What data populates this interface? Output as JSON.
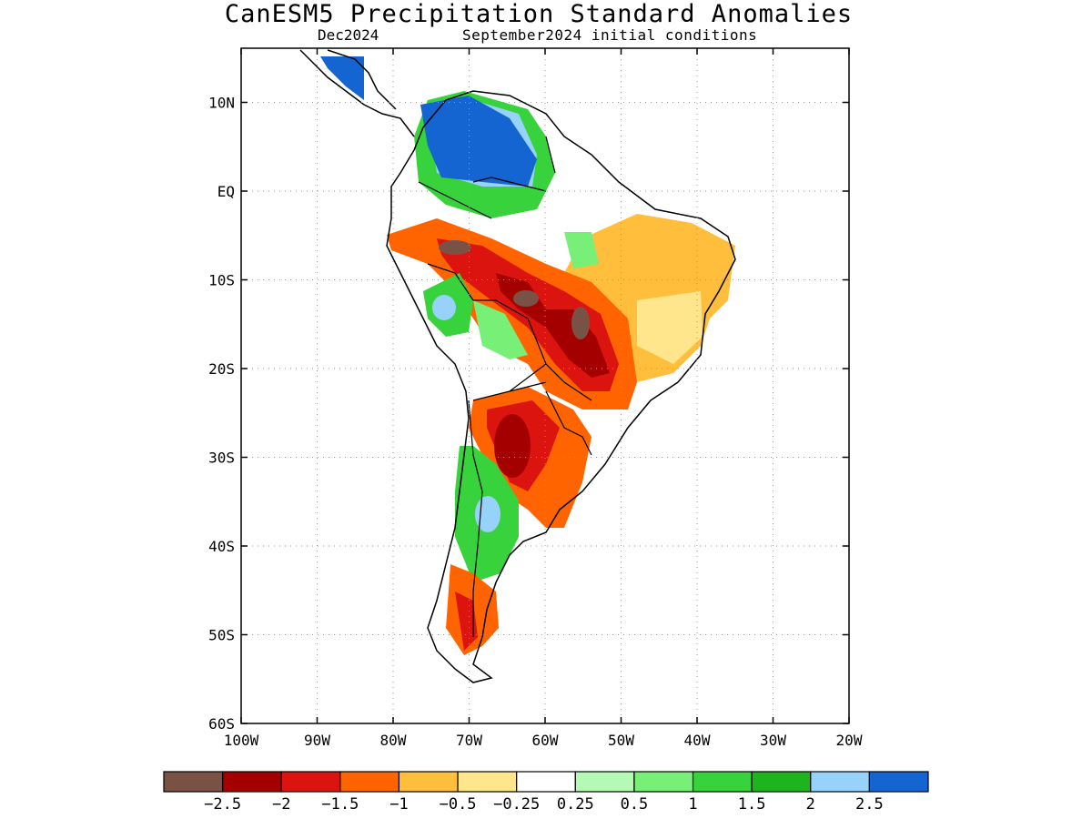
{
  "title": "CanESM5 Precipitation Standard Anomalies",
  "subtitle_left": "Dec2024",
  "subtitle_right": "September2024 initial conditions",
  "map": {
    "region": "South America",
    "lon_range": [
      -100,
      -20
    ],
    "lat_range": [
      -60,
      15
    ],
    "lat_labels": [
      {
        "lat": 10,
        "text": "10N"
      },
      {
        "lat": 0,
        "text": "EQ"
      },
      {
        "lat": -10,
        "text": "10S"
      },
      {
        "lat": -20,
        "text": "20S"
      },
      {
        "lat": -30,
        "text": "30S"
      },
      {
        "lat": -40,
        "text": "40S"
      },
      {
        "lat": -50,
        "text": "50S"
      },
      {
        "lat": -60,
        "text": "60S"
      }
    ],
    "lon_labels": [
      {
        "lon": -100,
        "text": "100W"
      },
      {
        "lon": -90,
        "text": "90W"
      },
      {
        "lon": -80,
        "text": "80W"
      },
      {
        "lon": -70,
        "text": "70W"
      },
      {
        "lon": -60,
        "text": "60W"
      },
      {
        "lon": -50,
        "text": "50W"
      },
      {
        "lon": -40,
        "text": "40W"
      },
      {
        "lon": -30,
        "text": "30W"
      },
      {
        "lon": -20,
        "text": "20W"
      }
    ],
    "grid": "dotted"
  },
  "colorbar": {
    "colors": [
      "#7a5245",
      "#a50000",
      "#dc1410",
      "#ff6400",
      "#ffbe3c",
      "#ffe68c",
      "#ffffff",
      "#b4fab4",
      "#78f078",
      "#37d23c",
      "#1eb41e",
      "#96d2fa",
      "#1464d2"
    ],
    "labels": [
      "−2.5",
      "−2",
      "−1.5",
      "−1",
      "−0.5",
      "−0.25",
      "0.25",
      "0.5",
      "1",
      "1.5",
      "2",
      "2.5"
    ]
  }
}
